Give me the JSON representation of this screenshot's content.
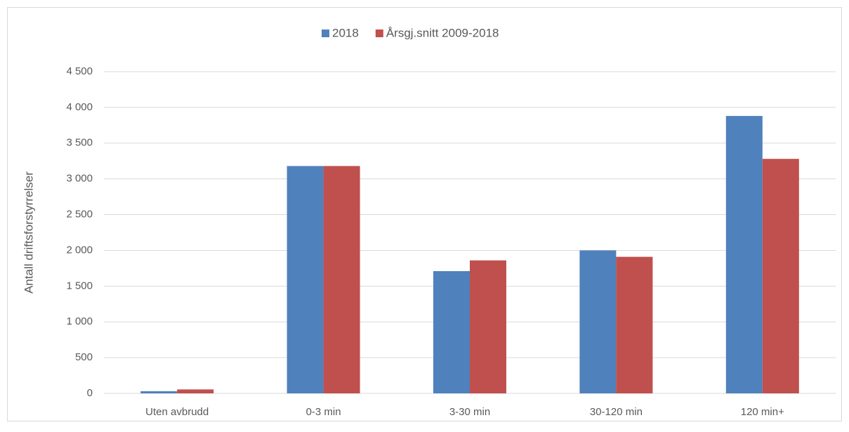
{
  "chart_data": {
    "type": "bar",
    "ylabel": "Antall driftsforstyrrelser",
    "categories": [
      "Uten avbrudd",
      "0-3 min",
      "3-30 min",
      "30-120 min",
      "120 min+"
    ],
    "series": [
      {
        "name": "2018",
        "color": "#4f81bd",
        "values": [
          30,
          3180,
          1710,
          2000,
          3880
        ]
      },
      {
        "name": "Årsgj.snitt 2009-2018",
        "color": "#c0504d",
        "values": [
          55,
          3180,
          1860,
          1910,
          3280
        ]
      }
    ],
    "ylim": [
      0,
      4500
    ],
    "yticks": [
      0,
      500,
      {
        "value": 1000,
        "label": "1 000"
      },
      {
        "value": 1500,
        "label": "1 500"
      },
      {
        "value": 2000,
        "label": "2 000"
      },
      {
        "value": 2500,
        "label": "2 500"
      },
      {
        "value": 3000,
        "label": "3 000"
      },
      {
        "value": 3500,
        "label": "3 500"
      },
      {
        "value": 4000,
        "label": "4 000"
      },
      {
        "value": 4500,
        "label": "4 500"
      }
    ],
    "grid": true,
    "legend": "top"
  }
}
